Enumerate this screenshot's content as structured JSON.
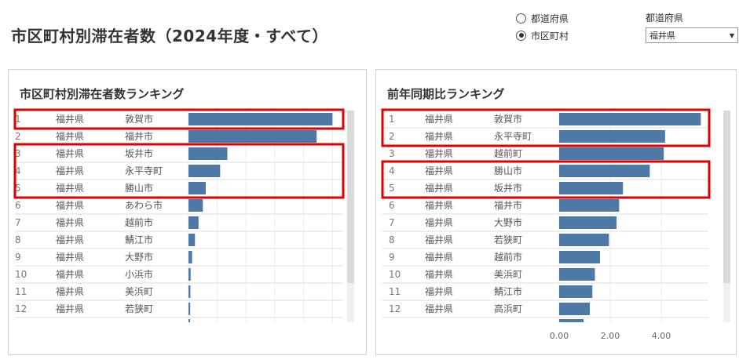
{
  "page": {
    "title": "市区町村別滞在者数（2024年度・すべて）"
  },
  "view_toggle": {
    "options": [
      {
        "label": "都道府県",
        "checked": false
      },
      {
        "label": "市区町村",
        "checked": true
      }
    ]
  },
  "prefecture_filter": {
    "label": "都道府県",
    "value": "福井県"
  },
  "highlight_color": "#e00000",
  "bar_color": "#4e79a7",
  "chart_data": [
    {
      "type": "bar",
      "title": "市区町村別滞在者数ランキング",
      "ranks": [
        "1",
        "2",
        "3",
        "4",
        "5",
        "6",
        "7",
        "8",
        "9",
        "10",
        "11",
        "12"
      ],
      "prefectures": [
        "福井県",
        "福井県",
        "福井県",
        "福井県",
        "福井県",
        "福井県",
        "福井県",
        "福井県",
        "福井県",
        "福井県",
        "福井県",
        "福井県"
      ],
      "categories": [
        "敦賀市",
        "福井市",
        "坂井市",
        "永平寺町",
        "勝山市",
        "あわら市",
        "越前市",
        "鯖江市",
        "大野市",
        "小浜市",
        "美浜町",
        "若狭町"
      ],
      "values": [
        100,
        89,
        27,
        22,
        12,
        10,
        7,
        4.5,
        2.5,
        1.5,
        1.3,
        1.2
      ],
      "xlim": [
        0,
        102
      ],
      "grid": true,
      "highlight_groups": [
        [
          1,
          1
        ],
        [
          3,
          5
        ]
      ]
    },
    {
      "type": "bar",
      "title": "前年同期比ランキング",
      "ranks": [
        "1",
        "2",
        "3",
        "4",
        "5",
        "6",
        "7",
        "8",
        "9",
        "10",
        "11",
        "12"
      ],
      "prefectures": [
        "福井県",
        "福井県",
        "福井県",
        "福井県",
        "福井県",
        "福井県",
        "福井県",
        "福井県",
        "福井県",
        "福井県",
        "福井県",
        "福井県"
      ],
      "categories": [
        "敦賀市",
        "永平寺町",
        "越前町",
        "勝山市",
        "坂井市",
        "福井市",
        "大野市",
        "若狭町",
        "越前市",
        "美浜町",
        "鯖江市",
        "高浜町"
      ],
      "values": [
        5.55,
        4.15,
        4.1,
        3.55,
        2.5,
        2.35,
        2.25,
        1.95,
        1.6,
        1.4,
        1.3,
        1.2
      ],
      "xticks": [
        "0.00",
        "2.00",
        "4.00"
      ],
      "xtick_values": [
        0,
        2,
        4
      ],
      "xlim": [
        0,
        5.6
      ],
      "grid": true,
      "highlight_groups": [
        [
          1,
          2
        ],
        [
          4,
          5
        ]
      ]
    }
  ]
}
